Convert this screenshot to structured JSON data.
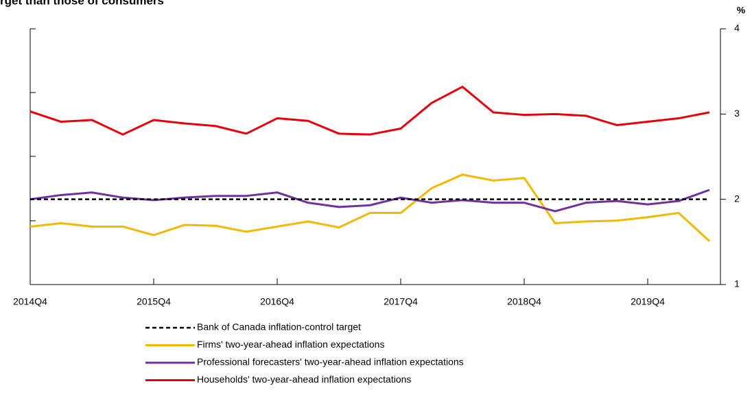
{
  "chart_data": {
    "type": "line",
    "title": "rget than those of consumers",
    "y_unit": "%",
    "categories": [
      "2014Q4",
      null,
      null,
      null,
      "2015Q4",
      null,
      null,
      null,
      "2016Q4",
      null,
      null,
      null,
      "2017Q4",
      null,
      null,
      null,
      "2018Q4",
      null,
      null,
      null,
      "2019Q4",
      null,
      null
    ],
    "ylim": [
      1,
      4
    ],
    "yticks": [
      1,
      2,
      3,
      4
    ],
    "series": [
      {
        "name": "Bank of Canada inflation-control target",
        "color": "#000000",
        "dashed": true,
        "values": [
          2,
          2,
          2,
          2,
          2,
          2,
          2,
          2,
          2,
          2,
          2,
          2,
          2,
          2,
          2,
          2,
          2,
          2,
          2,
          2,
          2,
          2,
          2
        ]
      },
      {
        "name": "Firms' two-year-ahead inflation expectations",
        "color": "#f5b800",
        "dashed": false,
        "values": [
          1.68,
          1.72,
          1.68,
          1.68,
          1.58,
          1.7,
          1.69,
          1.62,
          1.68,
          1.74,
          1.67,
          1.84,
          1.84,
          2.13,
          2.29,
          2.22,
          2.25,
          1.72,
          1.74,
          1.75,
          1.79,
          1.84,
          1.51
        ]
      },
      {
        "name": "Professional forecasters' two-year-ahead inflation expectations",
        "color": "#7030a0",
        "dashed": false,
        "values": [
          2.0,
          2.05,
          2.08,
          2.02,
          1.99,
          2.02,
          2.04,
          2.04,
          2.08,
          1.96,
          1.91,
          1.93,
          2.02,
          1.96,
          1.99,
          1.96,
          1.96,
          1.86,
          1.96,
          1.98,
          1.94,
          1.98,
          2.11
        ]
      },
      {
        "name": "Households' two-year-ahead inflation expectations",
        "color": "#e8000b",
        "dashed": false,
        "values": [
          3.03,
          2.91,
          2.93,
          2.76,
          2.93,
          2.89,
          2.86,
          2.77,
          2.95,
          2.92,
          2.77,
          2.76,
          2.83,
          3.13,
          3.32,
          3.02,
          2.99,
          3.0,
          2.98,
          2.87,
          2.91,
          2.95,
          3.02
        ]
      }
    ]
  }
}
